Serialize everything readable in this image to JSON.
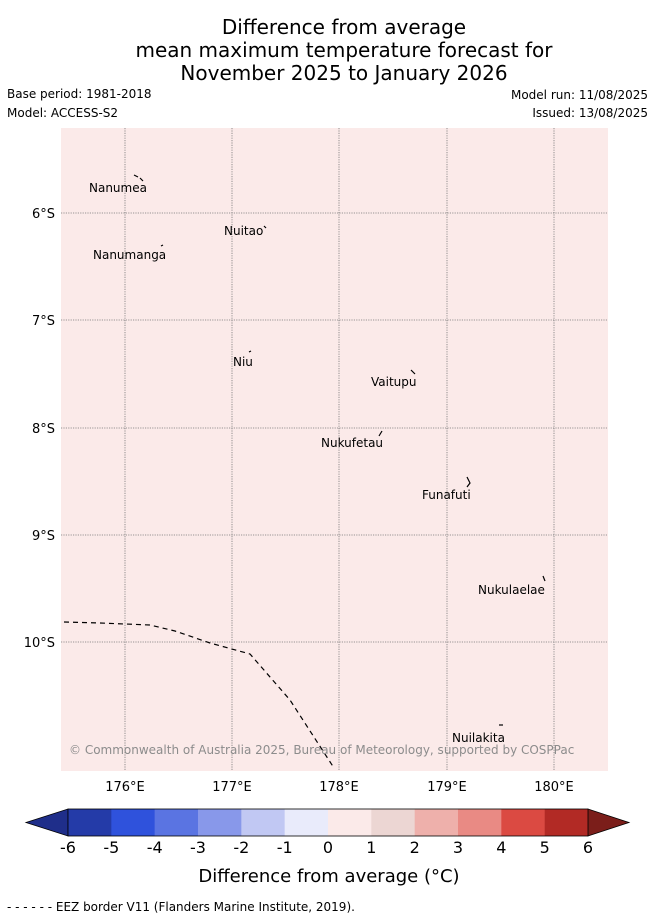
{
  "title": {
    "line1": "Difference from average",
    "line2": "mean maximum temperature forecast for",
    "line3": "November 2025 to January 2026"
  },
  "meta": {
    "base_period": "Base period: 1981-2018",
    "model": "Model: ACCESS-S2",
    "model_run": "Model run: 11/08/2025",
    "issued": "Issued: 13/08/2025"
  },
  "map": {
    "fill_color": "#fbeae9",
    "lat_labels": [
      "6°S",
      "7°S",
      "8°S",
      "9°S",
      "10°S"
    ],
    "lon_labels": [
      "176°E",
      "177°E",
      "178°E",
      "179°E",
      "180°E"
    ],
    "islands": [
      {
        "name": "Nanumea"
      },
      {
        "name": "Nuitao"
      },
      {
        "name": "Nanumanga"
      },
      {
        "name": "Niu"
      },
      {
        "name": "Vaitupu"
      },
      {
        "name": "Nukufetau"
      },
      {
        "name": "Funafuti"
      },
      {
        "name": "Nukulaelae"
      },
      {
        "name": "Nuilakita"
      }
    ],
    "copyright": "© Commonwealth of Australia 2025, Bureau of Meteorology, supported by COSPPac"
  },
  "colorbar": {
    "ticks": [
      "-6",
      "-5",
      "-4",
      "-3",
      "-2",
      "-1",
      "0",
      "1",
      "2",
      "3",
      "4",
      "5",
      "6"
    ],
    "colors": [
      "#243ba8",
      "#2f52dc",
      "#5a74e2",
      "#8898ea",
      "#c1c8f3",
      "#e9ebfb",
      "#fbeae9",
      "#ecd6d3",
      "#eeb0ab",
      "#e98a84",
      "#db4a42",
      "#b22a25"
    ],
    "low_extend_color": "#1f2e8a",
    "high_extend_color": "#7b1e1a",
    "label": "Difference from average (°C)"
  },
  "legend": {
    "eez": "- -  - -  - - EEZ border V11 (Flanders Marine Institute, 2019)."
  }
}
